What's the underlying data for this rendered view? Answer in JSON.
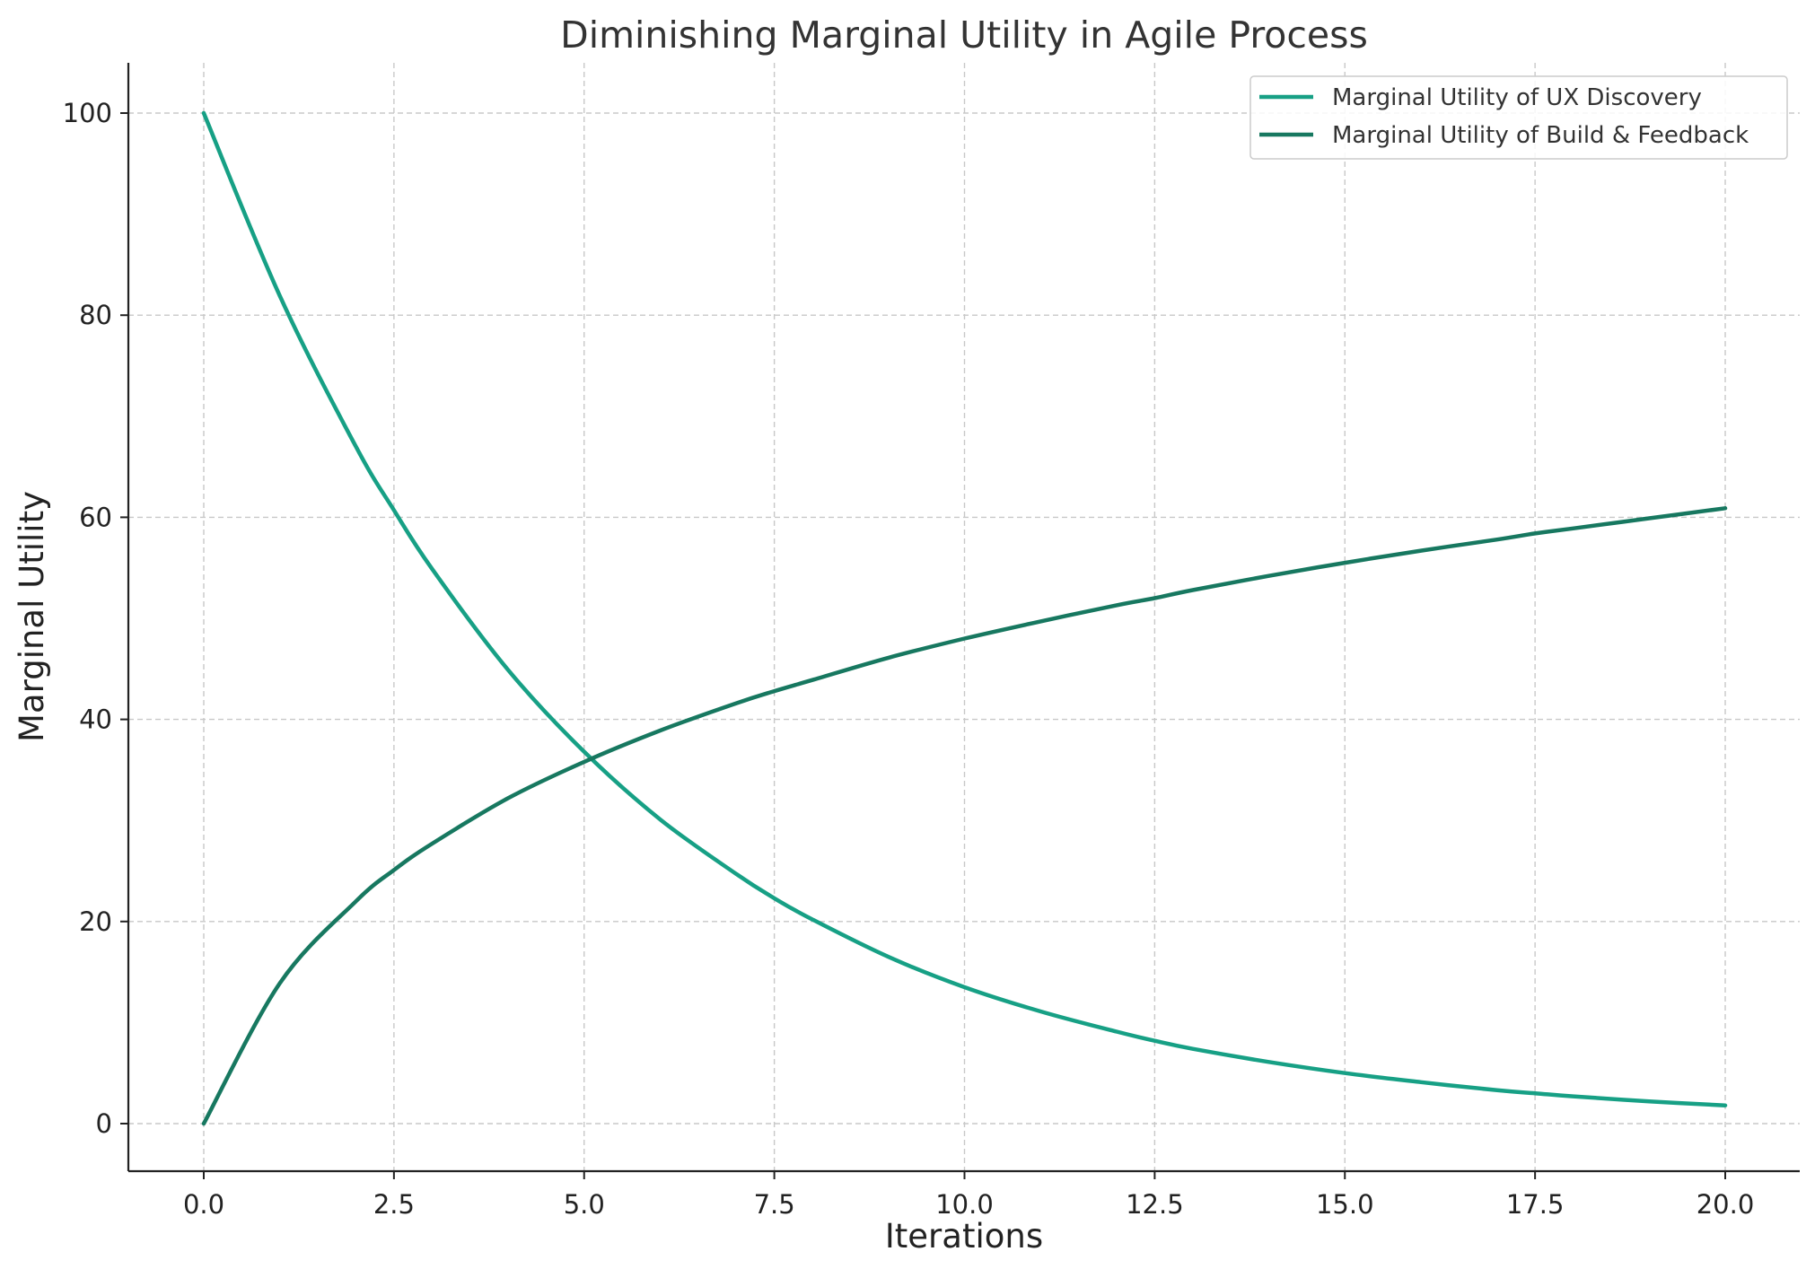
{
  "chart_data": {
    "type": "line",
    "title": "Diminishing Marginal Utility in Agile Process",
    "xlabel": "Iterations",
    "ylabel": "Marginal Utility",
    "xlim": [
      -1,
      21
    ],
    "ylim": [
      -5,
      105
    ],
    "xticks": [
      "0.0",
      "2.5",
      "5.0",
      "7.5",
      "10.0",
      "12.5",
      "15.0",
      "17.5",
      "20.0"
    ],
    "yticks": [
      "0",
      "20",
      "40",
      "60",
      "80",
      "100"
    ],
    "grid": true,
    "legend_position": "top-right",
    "x": [
      0,
      1,
      2,
      2.5,
      3,
      4,
      5,
      6,
      7,
      7.5,
      8,
      9,
      10,
      11,
      12,
      12.5,
      13,
      14,
      15,
      16,
      17,
      17.5,
      18,
      19,
      20
    ],
    "series": [
      {
        "name": "Marginal Utility of UX Discovery",
        "color": "#17a085",
        "values": [
          100,
          81.9,
          67.0,
          60.7,
          54.9,
          44.9,
          36.8,
          30.1,
          24.7,
          22.3,
          20.2,
          16.5,
          13.5,
          11.1,
          9.1,
          8.2,
          7.4,
          6.1,
          5.0,
          4.1,
          3.3,
          3.0,
          2.7,
          2.2,
          1.8
        ]
      },
      {
        "name": "Marginal Utility of Build & Feedback",
        "color": "#177860",
        "values": [
          0,
          13.9,
          22.0,
          25.1,
          27.7,
          32.2,
          35.8,
          38.9,
          41.6,
          42.8,
          43.9,
          46.1,
          48.0,
          49.7,
          51.3,
          52.0,
          52.8,
          54.2,
          55.5,
          56.7,
          57.8,
          58.4,
          58.9,
          59.9,
          60.9
        ]
      }
    ]
  }
}
